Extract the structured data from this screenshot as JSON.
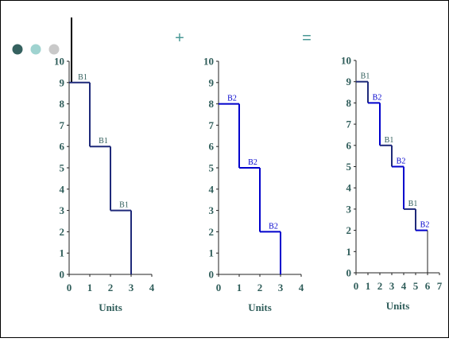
{
  "colors": {
    "dot1": "#35615f",
    "dot2": "#9fd3d0",
    "dot3": "#c9c9c9",
    "tick_text": "#2f5d5a",
    "operator": "#4a9896",
    "bidder_b1_line": "#1f2a7a",
    "bidder_b1_label": "#2f5d5a",
    "bidder_b2_line": "#0000cc",
    "bidder_b2_label": "#0000cc"
  },
  "operators": {
    "plus": "+",
    "equals": "="
  },
  "chart_data": [
    {
      "type": "line",
      "step": true,
      "xlabel": "Units",
      "xlim": [
        0,
        4
      ],
      "ylim": [
        0,
        10
      ],
      "xticks": [
        0,
        1,
        2,
        3,
        4
      ],
      "yticks": [
        0,
        1,
        2,
        3,
        4,
        5,
        6,
        7,
        8,
        9,
        10
      ],
      "series": [
        {
          "name": "B1",
          "steps": [
            {
              "x0": 0,
              "x1": 1,
              "y": 9
            },
            {
              "x0": 1,
              "x1": 2,
              "y": 6
            },
            {
              "x0": 2,
              "x1": 3,
              "y": 3
            }
          ]
        }
      ]
    },
    {
      "type": "line",
      "step": true,
      "xlabel": "Units",
      "xlim": [
        0,
        4
      ],
      "ylim": [
        0,
        10
      ],
      "xticks": [
        0,
        1,
        2,
        3,
        4
      ],
      "yticks": [
        0,
        1,
        2,
        3,
        4,
        5,
        6,
        7,
        8,
        9,
        10
      ],
      "series": [
        {
          "name": "B2",
          "steps": [
            {
              "x0": 0,
              "x1": 1,
              "y": 8
            },
            {
              "x0": 1,
              "x1": 2,
              "y": 5
            },
            {
              "x0": 2,
              "x1": 3,
              "y": 2
            }
          ]
        }
      ]
    },
    {
      "type": "line",
      "step": true,
      "xlabel": "Units",
      "xlim": [
        0,
        7
      ],
      "ylim": [
        0,
        10
      ],
      "xticks": [
        0,
        1,
        2,
        3,
        4,
        5,
        6,
        7
      ],
      "yticks": [
        0,
        1,
        2,
        3,
        4,
        5,
        6,
        7,
        8,
        9,
        10
      ],
      "series": [
        {
          "name": "B1",
          "steps": [
            {
              "x0": 0,
              "x1": 1,
              "y": 9
            },
            {
              "x0": 2,
              "x1": 3,
              "y": 6
            },
            {
              "x0": 4,
              "x1": 5,
              "y": 3
            }
          ]
        },
        {
          "name": "B2",
          "steps": [
            {
              "x0": 1,
              "x1": 2,
              "y": 8
            },
            {
              "x0": 3,
              "x1": 4,
              "y": 5
            },
            {
              "x0": 5,
              "x1": 6,
              "y": 2
            }
          ]
        }
      ]
    }
  ]
}
